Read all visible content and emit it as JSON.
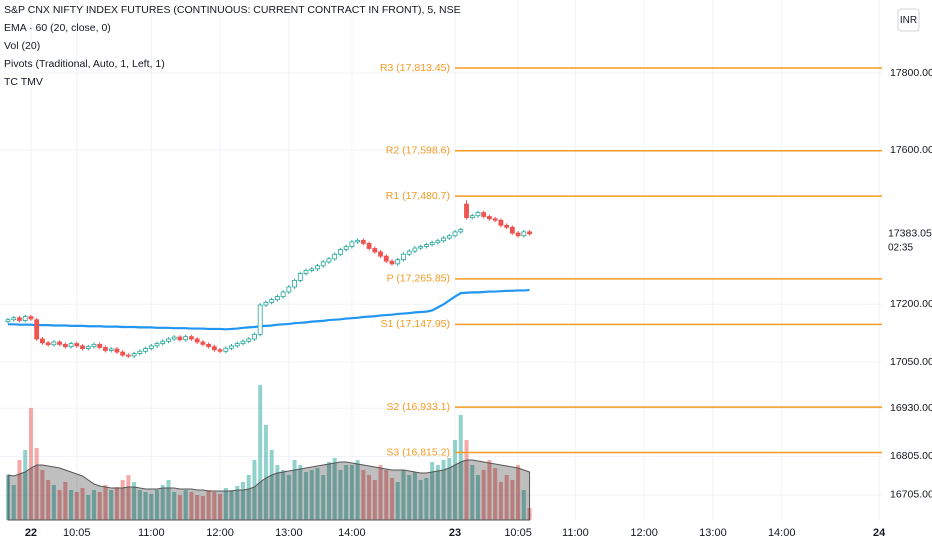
{
  "chart_data": {
    "type": "candlestick",
    "title": "S&P CNX NIFTY INDEX FUTURES (CONTINUOUS: CURRENT CONTRACT IN FRONT), 5, NSE",
    "indicators": [
      "EMA · 60 (20, close, 0)",
      "Vol (20)",
      "Pivots (Traditional, Auto, 1, Left, 1)",
      "TC TMV"
    ],
    "currency": "INR",
    "x": [
      0,
      1,
      2,
      3,
      4,
      5,
      6,
      7,
      8,
      9,
      10,
      11,
      12,
      13,
      14,
      15,
      16,
      17,
      18,
      19,
      20,
      21,
      22,
      23,
      24,
      25,
      26,
      27,
      28,
      29,
      30,
      31,
      32,
      33,
      34,
      35,
      36,
      37,
      38,
      39,
      40,
      41,
      42,
      43,
      44,
      45,
      46,
      47,
      48,
      49,
      50,
      51,
      52,
      53,
      54,
      55,
      56,
      57,
      58,
      59,
      60,
      61,
      62,
      63,
      64,
      65,
      66,
      67,
      68,
      69,
      70,
      71,
      72,
      73,
      74,
      75,
      76,
      77,
      78,
      79,
      80,
      81,
      82,
      83,
      84,
      85,
      86,
      87,
      88,
      89,
      90,
      91
    ],
    "open": [
      17155,
      17160,
      17165,
      17158,
      17168,
      17160,
      17110,
      17100,
      17095,
      17102,
      17096,
      17090,
      17098,
      17092,
      17085,
      17090,
      17096,
      17088,
      17080,
      17084,
      17076,
      17068,
      17066,
      17072,
      17078,
      17085,
      17092,
      17098,
      17104,
      17110,
      17115,
      17108,
      17116,
      17110,
      17102,
      17096,
      17090,
      17082,
      17078,
      17086,
      17092,
      17098,
      17104,
      17110,
      17122,
      17198,
      17205,
      17212,
      17220,
      17232,
      17245,
      17262,
      17280,
      17288,
      17292,
      17300,
      17310,
      17318,
      17330,
      17342,
      17350,
      17362,
      17366,
      17358,
      17345,
      17336,
      17325,
      17312,
      17305,
      17316,
      17330,
      17338,
      17346,
      17350,
      17355,
      17360,
      17365,
      17372,
      17378,
      17388,
      17460,
      17425,
      17430,
      17438,
      17428,
      17422,
      17418,
      17405,
      17400,
      17385,
      17378,
      17388
    ],
    "high": [
      17165,
      17170,
      17170,
      17173,
      17173,
      17165,
      17115,
      17105,
      17107,
      17107,
      17101,
      17103,
      17103,
      17097,
      17095,
      17101,
      17101,
      17093,
      17089,
      17089,
      17081,
      17073,
      17077,
      17083,
      17090,
      17097,
      17103,
      17109,
      17115,
      17120,
      17120,
      17121,
      17121,
      17115,
      17107,
      17101,
      17095,
      17087,
      17091,
      17097,
      17103,
      17109,
      17115,
      17127,
      17203,
      17210,
      17217,
      17225,
      17237,
      17250,
      17267,
      17285,
      17293,
      17297,
      17305,
      17315,
      17323,
      17335,
      17347,
      17355,
      17367,
      17371,
      17371,
      17363,
      17350,
      17341,
      17330,
      17317,
      17321,
      17335,
      17343,
      17351,
      17355,
      17360,
      17365,
      17370,
      17377,
      17383,
      17393,
      17399,
      17470,
      17435,
      17443,
      17443,
      17433,
      17427,
      17423,
      17410,
      17405,
      17390,
      17393,
      17393
    ],
    "low": [
      17150,
      17155,
      17153,
      17153,
      17157,
      17105,
      17095,
      17090,
      17090,
      17091,
      17085,
      17085,
      17087,
      17080,
      17080,
      17085,
      17083,
      17075,
      17075,
      17071,
      17063,
      17061,
      17061,
      17067,
      17073,
      17080,
      17087,
      17093,
      17099,
      17105,
      17103,
      17103,
      17105,
      17097,
      17091,
      17085,
      17077,
      17073,
      17073,
      17081,
      17087,
      17093,
      17099,
      17105,
      17117,
      17193,
      17200,
      17207,
      17215,
      17227,
      17240,
      17257,
      17275,
      17283,
      17287,
      17295,
      17305,
      17313,
      17325,
      17337,
      17345,
      17357,
      17353,
      17340,
      17331,
      17320,
      17307,
      17300,
      17300,
      17311,
      17325,
      17333,
      17341,
      17345,
      17350,
      17355,
      17360,
      17367,
      17373,
      17383,
      17420,
      17420,
      17425,
      17423,
      17417,
      17413,
      17400,
      17395,
      17380,
      17373,
      17373,
      17378
    ],
    "close": [
      17160,
      17165,
      17158,
      17168,
      17162,
      17110,
      17100,
      17095,
      17102,
      17096,
      17090,
      17098,
      17092,
      17085,
      17090,
      17096,
      17088,
      17080,
      17084,
      17076,
      17068,
      17066,
      17072,
      17078,
      17085,
      17092,
      17098,
      17104,
      17110,
      17115,
      17108,
      17116,
      17110,
      17102,
      17096,
      17090,
      17082,
      17078,
      17086,
      17092,
      17098,
      17104,
      17110,
      17122,
      17198,
      17205,
      17212,
      17220,
      17232,
      17245,
      17262,
      17280,
      17288,
      17292,
      17300,
      17310,
      17318,
      17330,
      17342,
      17350,
      17362,
      17366,
      17358,
      17345,
      17336,
      17325,
      17312,
      17305,
      17316,
      17330,
      17338,
      17346,
      17350,
      17355,
      17360,
      17365,
      17372,
      17378,
      17388,
      17394,
      17425,
      17430,
      17438,
      17428,
      17422,
      17418,
      17405,
      17400,
      17385,
      17378,
      17388,
      17383.05
    ],
    "volume": [
      45,
      35,
      60,
      70,
      112,
      72,
      50,
      40,
      35,
      30,
      38,
      30,
      28,
      32,
      25,
      30,
      28,
      35,
      30,
      33,
      40,
      45,
      38,
      30,
      28,
      26,
      30,
      35,
      40,
      28,
      25,
      30,
      28,
      25,
      24,
      30,
      28,
      26,
      32,
      30,
      34,
      38,
      45,
      60,
      135,
      95,
      70,
      55,
      50,
      45,
      60,
      55,
      48,
      50,
      52,
      45,
      58,
      62,
      50,
      55,
      55,
      60,
      50,
      45,
      40,
      55,
      50,
      42,
      38,
      50,
      45,
      48,
      40,
      42,
      58,
      55,
      60,
      62,
      80,
      105,
      80,
      55,
      45,
      50,
      60,
      52,
      38,
      45,
      40,
      55,
      30,
      12
    ],
    "volume_ma": [
      45,
      44,
      46,
      48,
      52,
      55,
      55,
      54,
      53,
      52,
      50,
      48,
      46,
      44,
      40,
      36,
      34,
      33,
      32,
      32,
      32,
      33,
      33,
      32,
      31,
      31,
      31,
      32,
      32,
      32,
      31,
      31,
      31,
      30,
      30,
      29,
      29,
      29,
      29,
      29,
      30,
      30,
      31,
      33,
      38,
      42,
      45,
      47,
      48,
      49,
      50,
      51,
      52,
      53,
      54,
      55,
      56,
      57,
      58,
      58,
      57,
      56,
      55,
      54,
      53,
      52,
      51,
      50,
      50,
      50,
      49,
      48,
      47,
      47,
      48,
      49,
      50,
      52,
      55,
      58,
      60,
      60,
      59,
      58,
      57,
      56,
      55,
      54,
      53,
      52,
      50,
      48
    ],
    "ema": [
      17148,
      17148,
      17147,
      17147,
      17147,
      17146,
      17146,
      17146,
      17145,
      17145,
      17145,
      17144,
      17144,
      17144,
      17143,
      17143,
      17143,
      17142,
      17142,
      17142,
      17141,
      17141,
      17141,
      17140,
      17140,
      17140,
      17139,
      17139,
      17139,
      17138,
      17138,
      17138,
      17137,
      17137,
      17137,
      17136,
      17136,
      17136,
      17135,
      17136,
      17137,
      17139,
      17140,
      17141,
      17143,
      17144,
      17145,
      17147,
      17148,
      17149,
      17151,
      17152,
      17153,
      17155,
      17156,
      17157,
      17159,
      17160,
      17161,
      17163,
      17164,
      17165,
      17167,
      17168,
      17169,
      17171,
      17172,
      17173,
      17175,
      17176,
      17177,
      17179,
      17180,
      17181,
      17184,
      17192,
      17200,
      17210,
      17220,
      17229,
      17230,
      17231,
      17231,
      17232,
      17233,
      17233,
      17234,
      17235,
      17235,
      17236,
      17236,
      17237
    ],
    "up_color": "#26a69a",
    "down_color": "#ef5350",
    "ema_color": "#2196f3",
    "xlim": [
      -1.4,
      152.5
    ],
    "xticks": [
      {
        "value": 4,
        "label": "22"
      },
      {
        "value": 12,
        "label": "10:05"
      },
      {
        "value": 25,
        "label": "11:00"
      },
      {
        "value": 37,
        "label": "12:00"
      },
      {
        "value": 49,
        "label": "13:00"
      },
      {
        "value": 60,
        "label": "14:00"
      },
      {
        "value": 78,
        "label": "23"
      },
      {
        "value": 89,
        "label": "10:05"
      },
      {
        "value": 99,
        "label": "11:00"
      },
      {
        "value": 111,
        "label": "12:00"
      },
      {
        "value": 123,
        "label": "13:00"
      },
      {
        "value": 135,
        "label": "14:00"
      },
      {
        "value": 152,
        "label": "24"
      }
    ],
    "ylim": [
      16640,
      17990
    ],
    "yticks": [
      {
        "value": 17800,
        "label": "17800.00"
      },
      {
        "value": 17600,
        "label": "17600.00"
      },
      {
        "value": 17200,
        "label": "17200.00"
      },
      {
        "value": 17050,
        "label": "17050.00"
      },
      {
        "value": 16930,
        "label": "16930.00"
      },
      {
        "value": 16805,
        "label": "16805.00"
      },
      {
        "value": 16705,
        "label": "16705.00"
      }
    ],
    "volume_lim": [
      0,
      150
    ],
    "pivots": {
      "color": "#f59b23",
      "values": [
        17813.45,
        17598.6,
        17480.7,
        17265.85,
        17147.95,
        16933.1,
        16815.2
      ],
      "value_labels": [
        "R3 (17,813.45)",
        "R2 (17,598.6)",
        "R1 (17,480.7)",
        "P (17,265.85)",
        "S1 (17,147.95)",
        "S2 (16,933.1)",
        "S3 (16,815.2)"
      ]
    },
    "last_price": 17383.05,
    "countdown": "02:35",
    "grid": true
  }
}
